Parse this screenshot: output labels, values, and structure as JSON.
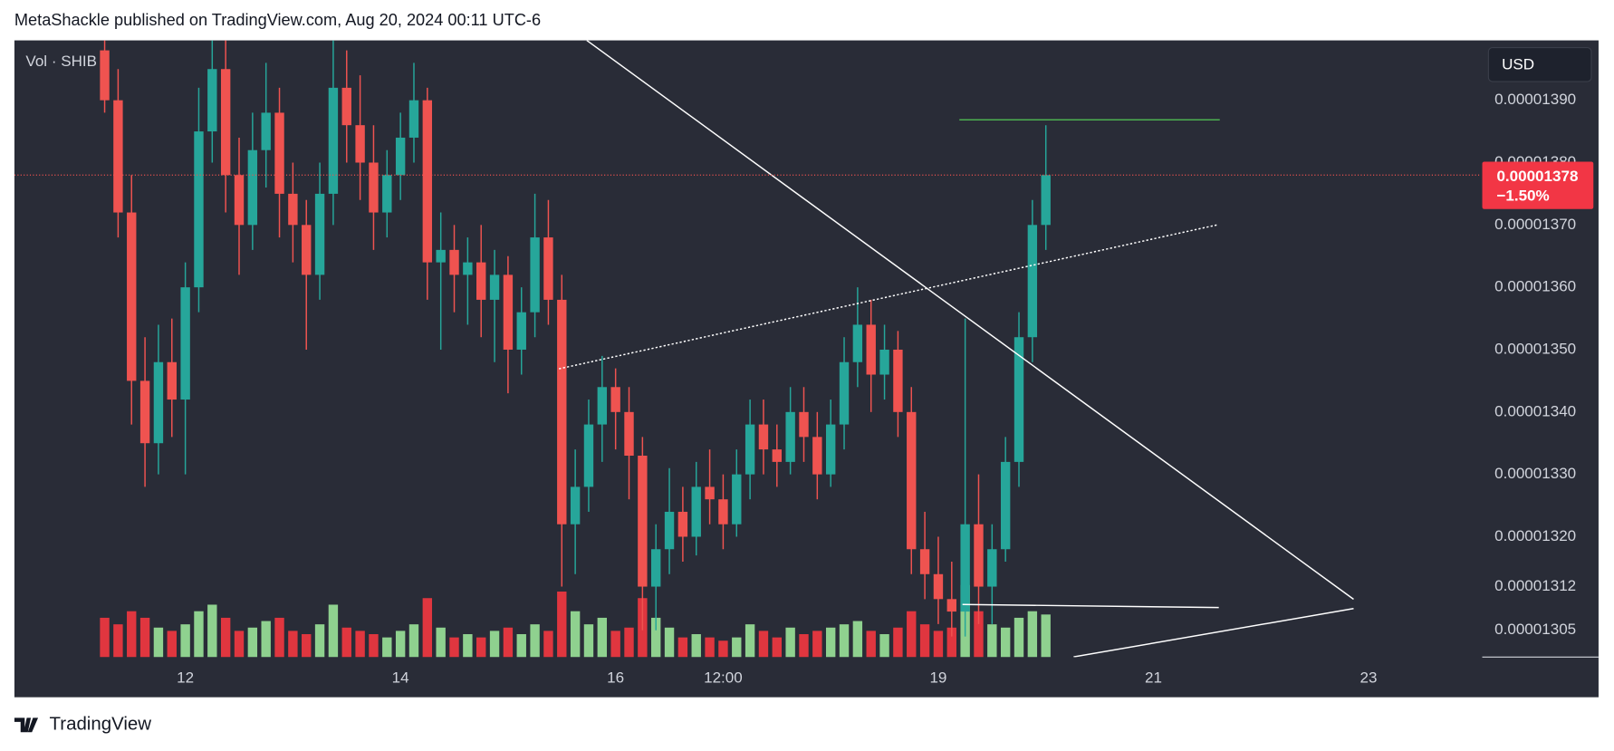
{
  "chart_data": {
    "type": "candlestick",
    "title": "MetaShackle published on TradingView.com, Aug 20, 2024 00:11 UTC-6",
    "legend": "Vol · SHIB",
    "currency": "USD",
    "brand": "TradingView",
    "up_color": "#26a69a",
    "down_color": "#ef5350",
    "volume_up_color": "#8fd18f",
    "volume_down_color": "#e0363f",
    "xlim": [
      10.411,
      24.038
    ],
    "xticks": [
      12,
      14,
      16,
      {
        "value": 17,
        "label": "12:00"
      },
      19,
      21,
      23
    ],
    "ylim": [
      1.3007e-05,
      1.3996e-05
    ],
    "yticks": [
      {
        "value": 1.39e-05,
        "label": "0.00001390"
      },
      {
        "value": 1.38e-05,
        "label": "0.00001380"
      },
      {
        "value": 1.37e-05,
        "label": "0.00001370"
      },
      {
        "value": 1.36e-05,
        "label": "0.00001360"
      },
      {
        "value": 1.35e-05,
        "label": "0.00001350"
      },
      {
        "value": 1.34e-05,
        "label": "0.00001340"
      },
      {
        "value": 1.33e-05,
        "label": "0.00001330"
      },
      {
        "value": 1.32e-05,
        "label": "0.00001320"
      },
      {
        "value": 1.312e-05,
        "label": "0.00001312"
      },
      {
        "value": 1.305e-05,
        "label": "0.00001305"
      }
    ],
    "last_price": {
      "value": 1.378e-05,
      "label": "0.00001378"
    },
    "change": {
      "value": -1.5,
      "label": "−1.50%"
    },
    "x": [
      11.25,
      11.375,
      11.5,
      11.625,
      11.75,
      11.875,
      12,
      12.125,
      12.25,
      12.375,
      12.5,
      12.625,
      12.75,
      12.875,
      13,
      13.125,
      13.25,
      13.375,
      13.5,
      13.625,
      13.75,
      13.875,
      14,
      14.125,
      14.25,
      14.375,
      14.5,
      14.625,
      14.75,
      14.875,
      15,
      15.125,
      15.25,
      15.375,
      15.5,
      15.625,
      15.75,
      15.875,
      16,
      16.125,
      16.25,
      16.375,
      16.5,
      16.625,
      16.75,
      16.875,
      17,
      17.125,
      17.25,
      17.375,
      17.5,
      17.625,
      17.75,
      17.875,
      18,
      18.125,
      18.25,
      18.375,
      18.5,
      18.625,
      18.75,
      18.875,
      19,
      19.125,
      19.25,
      19.375,
      19.5,
      19.625,
      19.75,
      19.875,
      20
    ],
    "open": [
      1.398e-05,
      1.39e-05,
      1.372e-05,
      1.345e-05,
      1.335e-05,
      1.348e-05,
      1.342e-05,
      1.36e-05,
      1.385e-05,
      1.395e-05,
      1.378e-05,
      1.37e-05,
      1.382e-05,
      1.388e-05,
      1.375e-05,
      1.37e-05,
      1.362e-05,
      1.375e-05,
      1.392e-05,
      1.386e-05,
      1.38e-05,
      1.372e-05,
      1.378e-05,
      1.384e-05,
      1.39e-05,
      1.364e-05,
      1.366e-05,
      1.362e-05,
      1.364e-05,
      1.358e-05,
      1.362e-05,
      1.35e-05,
      1.356e-05,
      1.368e-05,
      1.358e-05,
      1.322e-05,
      1.328e-05,
      1.338e-05,
      1.344e-05,
      1.34e-05,
      1.333e-05,
      1.312e-05,
      1.318e-05,
      1.324e-05,
      1.32e-05,
      1.328e-05,
      1.326e-05,
      1.322e-05,
      1.33e-05,
      1.338e-05,
      1.334e-05,
      1.332e-05,
      1.34e-05,
      1.336e-05,
      1.33e-05,
      1.338e-05,
      1.348e-05,
      1.354e-05,
      1.346e-05,
      1.35e-05,
      1.34e-05,
      1.318e-05,
      1.314e-05,
      1.31e-05,
      1.308e-05,
      1.322e-05,
      1.312e-05,
      1.318e-05,
      1.332e-05,
      1.352e-05,
      1.37e-05
    ],
    "high": [
      1.402e-05,
      1.395e-05,
      1.378e-05,
      1.352e-05,
      1.354e-05,
      1.355e-05,
      1.364e-05,
      1.392e-05,
      1.402e-05,
      1.4e-05,
      1.384e-05,
      1.388e-05,
      1.396e-05,
      1.392e-05,
      1.38e-05,
      1.374e-05,
      1.38e-05,
      1.4e-05,
      1.398e-05,
      1.394e-05,
      1.386e-05,
      1.382e-05,
      1.388e-05,
      1.396e-05,
      1.392e-05,
      1.372e-05,
      1.37e-05,
      1.368e-05,
      1.37e-05,
      1.366e-05,
      1.365e-05,
      1.36e-05,
      1.375e-05,
      1.374e-05,
      1.362e-05,
      1.334e-05,
      1.342e-05,
      1.349e-05,
      1.347e-05,
      1.344e-05,
      1.336e-05,
      1.322e-05,
      1.331e-05,
      1.328e-05,
      1.332e-05,
      1.334e-05,
      1.33e-05,
      1.334e-05,
      1.342e-05,
      1.342e-05,
      1.338e-05,
      1.344e-05,
      1.344e-05,
      1.34e-05,
      1.342e-05,
      1.352e-05,
      1.36e-05,
      1.358e-05,
      1.354e-05,
      1.353e-05,
      1.344e-05,
      1.324e-05,
      1.32e-05,
      1.316e-05,
      1.355e-05,
      1.33e-05,
      1.322e-05,
      1.336e-05,
      1.356e-05,
      1.374e-05,
      1.386e-05
    ],
    "low": [
      1.388e-05,
      1.368e-05,
      1.338e-05,
      1.328e-05,
      1.33e-05,
      1.336e-05,
      1.33e-05,
      1.356e-05,
      1.38e-05,
      1.372e-05,
      1.362e-05,
      1.366e-05,
      1.376e-05,
      1.368e-05,
      1.364e-05,
      1.35e-05,
      1.358e-05,
      1.37e-05,
      1.38e-05,
      1.374e-05,
      1.366e-05,
      1.368e-05,
      1.374e-05,
      1.38e-05,
      1.358e-05,
      1.35e-05,
      1.356e-05,
      1.354e-05,
      1.352e-05,
      1.348e-05,
      1.343e-05,
      1.346e-05,
      1.352e-05,
      1.354e-05,
      1.312e-05,
      1.314e-05,
      1.324e-05,
      1.332e-05,
      1.334e-05,
      1.326e-05,
      1.305e-05,
      1.305e-05,
      1.314e-05,
      1.316e-05,
      1.317e-05,
      1.322e-05,
      1.318e-05,
      1.32e-05,
      1.326e-05,
      1.33e-05,
      1.328e-05,
      1.33e-05,
      1.332e-05,
      1.326e-05,
      1.328e-05,
      1.334e-05,
      1.344e-05,
      1.34e-05,
      1.342e-05,
      1.336e-05,
      1.314e-05,
      1.31e-05,
      1.306e-05,
      1.304e-05,
      1.304e-05,
      1.306e-05,
      1.306e-05,
      1.316e-05,
      1.328e-05,
      1.348e-05,
      1.366e-05
    ],
    "close": [
      1.39e-05,
      1.372e-05,
      1.345e-05,
      1.335e-05,
      1.348e-05,
      1.342e-05,
      1.36e-05,
      1.385e-05,
      1.395e-05,
      1.378e-05,
      1.37e-05,
      1.382e-05,
      1.388e-05,
      1.375e-05,
      1.37e-05,
      1.362e-05,
      1.375e-05,
      1.392e-05,
      1.386e-05,
      1.38e-05,
      1.372e-05,
      1.378e-05,
      1.384e-05,
      1.39e-05,
      1.364e-05,
      1.366e-05,
      1.362e-05,
      1.364e-05,
      1.358e-05,
      1.362e-05,
      1.35e-05,
      1.356e-05,
      1.368e-05,
      1.358e-05,
      1.322e-05,
      1.328e-05,
      1.338e-05,
      1.344e-05,
      1.34e-05,
      1.333e-05,
      1.312e-05,
      1.318e-05,
      1.324e-05,
      1.32e-05,
      1.328e-05,
      1.326e-05,
      1.322e-05,
      1.33e-05,
      1.338e-05,
      1.334e-05,
      1.332e-05,
      1.34e-05,
      1.336e-05,
      1.33e-05,
      1.338e-05,
      1.348e-05,
      1.354e-05,
      1.346e-05,
      1.35e-05,
      1.34e-05,
      1.318e-05,
      1.314e-05,
      1.31e-05,
      1.308e-05,
      1.322e-05,
      1.312e-05,
      1.318e-05,
      1.332e-05,
      1.352e-05,
      1.37e-05,
      1.378e-05
    ],
    "volume": [
      12,
      10,
      14,
      12,
      9,
      8,
      10,
      14,
      16,
      12,
      8,
      9,
      11,
      12,
      8,
      7,
      10,
      16,
      9,
      8,
      7,
      6,
      8,
      10,
      18,
      9,
      6,
      7,
      6,
      8,
      9,
      7,
      10,
      8,
      20,
      14,
      10,
      12,
      8,
      9,
      18,
      12,
      9,
      6,
      7,
      6,
      5,
      6,
      10,
      8,
      6,
      9,
      7,
      8,
      9,
      10,
      11,
      8,
      7,
      9,
      14,
      10,
      8,
      9,
      22,
      14,
      10,
      9,
      12,
      14,
      13
    ],
    "drawings": [
      {
        "color": "#ffffff",
        "dash": false,
        "points": [
          [
            15.732,
            1.3996e-05
          ],
          [
            22.861,
            1.30997e-05
          ]
        ]
      },
      {
        "color": "#ffffff",
        "dash": true,
        "points": [
          [
            15.474,
            1.34693e-05
          ],
          [
            21.598,
            1.37003e-05
          ]
        ]
      },
      {
        "color": "#ffffff",
        "dash": false,
        "points": [
          [
            20.258,
            1.30073e-05
          ],
          [
            22.861,
            1.30848e-05
          ]
        ]
      },
      {
        "color": "#ffffff",
        "dash": false,
        "points": [
          [
            19.225,
            1.30914e-05
          ],
          [
            21.608,
            1.30865e-05
          ]
        ]
      },
      {
        "color": "#4caf50",
        "dash": false,
        "points": [
          [
            19.196,
            1.38686e-05
          ],
          [
            21.617,
            1.38686e-05
          ]
        ]
      }
    ]
  }
}
